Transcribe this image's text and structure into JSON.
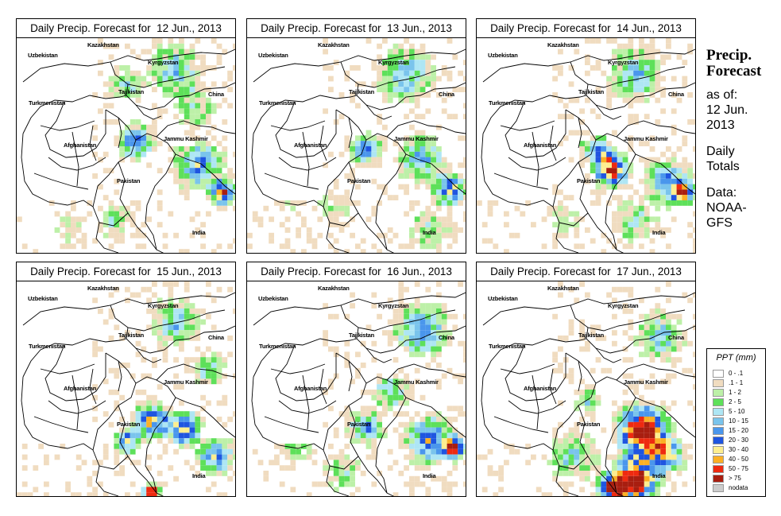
{
  "panels": [
    {
      "title": "Daily Precip. Forecast for  12 Jun., 2013"
    },
    {
      "title": "Daily Precip. Forecast for  13 Jun., 2013"
    },
    {
      "title": "Daily Precip. Forecast for  14 Jun., 2013"
    },
    {
      "title": "Daily Precip. Forecast for  15 Jun., 2013"
    },
    {
      "title": "Daily Precip. Forecast for  16 Jun., 2013"
    },
    {
      "title": "Daily Precip. Forecast for  17 Jun., 2013"
    }
  ],
  "map_labels": {
    "uzbekistan": "Uzbekistan",
    "kazakhstan": "Kazakhstan",
    "kyrgyzstan": "Kyrgyzstan",
    "tajikistan": "Tajikistan",
    "turkmenistan": "Turkmenistan",
    "china": "China",
    "afghanistan": "Afghanistan",
    "jammu_kashmir": "Jammu Kashmir",
    "pakistan": "Pakistan",
    "india": "India"
  },
  "side_text": {
    "heading_line1": "Precip.",
    "heading_line2": "Forecast",
    "asof_1": "as of:",
    "asof_2": "12 Jun.",
    "asof_3": "2013",
    "totals_1": "Daily",
    "totals_2": "Totals",
    "data_1": "Data:",
    "data_2": "NOAA-",
    "data_3": "GFS"
  },
  "legend": {
    "title": "PPT (mm)",
    "items": [
      {
        "label": "0 - .1",
        "color": "#ffffff"
      },
      {
        "label": ".1 - 1",
        "color": "#f0dcc0"
      },
      {
        "label": "1 - 2",
        "color": "#bdf0a8"
      },
      {
        "label": "2 - 5",
        "color": "#5ee05a"
      },
      {
        "label": "5 - 10",
        "color": "#aee6f4"
      },
      {
        "label": "10 - 15",
        "color": "#7ac4ec"
      },
      {
        "label": "15 - 20",
        "color": "#4a96ec"
      },
      {
        "label": "20 - 30",
        "color": "#1f55e0"
      },
      {
        "label": "30 - 40",
        "color": "#fdee90"
      },
      {
        "label": "40 - 50",
        "color": "#fbb025"
      },
      {
        "label": "50 - 75",
        "color": "#ee2a10"
      },
      {
        "label": "> 75",
        "color": "#a81e10"
      },
      {
        "label": "nodata",
        "color": "#cccccc"
      }
    ]
  }
}
